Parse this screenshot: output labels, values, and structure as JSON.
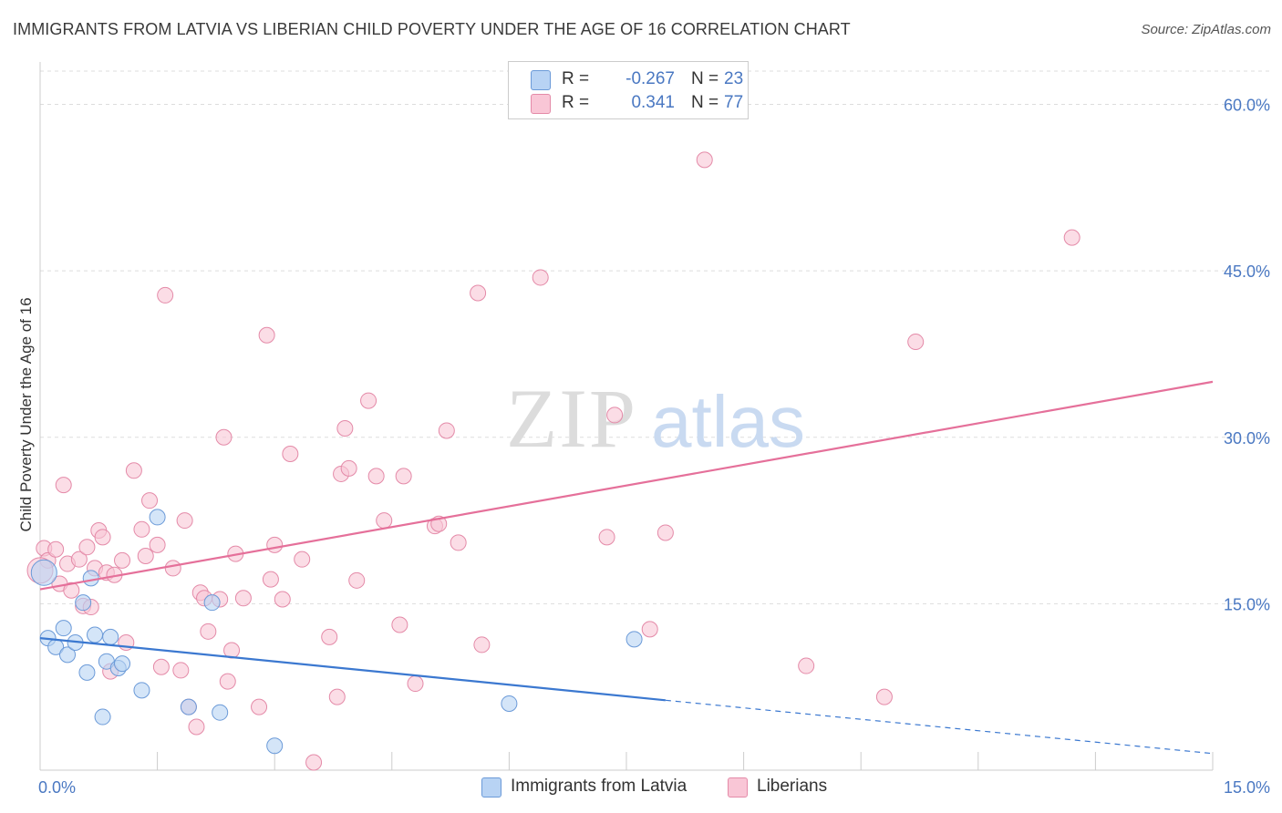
{
  "header": {
    "title": "IMMIGRANTS FROM LATVIA VS LIBERIAN CHILD POVERTY UNDER THE AGE OF 16 CORRELATION CHART",
    "source": "Source: ZipAtlas.com"
  },
  "watermark": {
    "part1": "ZIP",
    "part2": "atlas"
  },
  "legend": {
    "r_label": "R =",
    "n_label": "N =",
    "rows": [
      {
        "r": "-0.267",
        "n": "23",
        "color": "#b8d3f4",
        "border": "#6b9ad8"
      },
      {
        "r": "0.341",
        "n": "77",
        "color": "#f9c6d6",
        "border": "#e48aa8"
      }
    ]
  },
  "chart_data": {
    "type": "scatter",
    "ylabel": "Child Poverty Under the Age of 16",
    "xlim": [
      0,
      15
    ],
    "ylim": [
      0,
      63
    ],
    "x_tick_labels": [
      "0.0%",
      "15.0%"
    ],
    "y_ticks": [
      15,
      30,
      45,
      60
    ],
    "y_tick_labels": [
      "15.0%",
      "30.0%",
      "45.0%",
      "60.0%"
    ],
    "grid": true,
    "series": [
      {
        "name": "Immigrants from Latvia",
        "color": "#b8d3f4",
        "stroke": "#6b9ad8",
        "line_color": "#3b78d0",
        "trend": {
          "x0": 0,
          "y0": 11.9,
          "x1": 8.0,
          "y1": 6.3,
          "dash_to_x": 15,
          "dash_to_y": 1.5
        },
        "points": [
          [
            0.1,
            11.9
          ],
          [
            0.2,
            11.1
          ],
          [
            0.3,
            12.8
          ],
          [
            0.35,
            10.4
          ],
          [
            0.45,
            11.5
          ],
          [
            0.55,
            15.1
          ],
          [
            0.6,
            8.8
          ],
          [
            0.65,
            17.3
          ],
          [
            0.7,
            12.2
          ],
          [
            0.8,
            4.8
          ],
          [
            0.85,
            9.8
          ],
          [
            0.9,
            12.0
          ],
          [
            1.0,
            9.2
          ],
          [
            1.05,
            9.6
          ],
          [
            1.3,
            7.2
          ],
          [
            1.5,
            22.8
          ],
          [
            1.9,
            5.7
          ],
          [
            2.2,
            15.1
          ],
          [
            2.3,
            5.2
          ],
          [
            3.0,
            2.2
          ],
          [
            6.0,
            6.0
          ],
          [
            7.6,
            11.8
          ],
          [
            0.05,
            17.8
          ]
        ]
      },
      {
        "name": "Liberians",
        "color": "#f9c6d6",
        "stroke": "#e48aa8",
        "line_color": "#e5709a",
        "trend": {
          "x0": 0,
          "y0": 16.3,
          "x1": 15,
          "y1": 35.0
        },
        "points": [
          [
            0.05,
            20.0
          ],
          [
            0.1,
            18.9
          ],
          [
            0.2,
            19.9
          ],
          [
            0.25,
            16.8
          ],
          [
            0.3,
            25.7
          ],
          [
            0.35,
            18.6
          ],
          [
            0.4,
            16.2
          ],
          [
            0.5,
            19.0
          ],
          [
            0.55,
            14.8
          ],
          [
            0.6,
            20.1
          ],
          [
            0.65,
            14.7
          ],
          [
            0.7,
            18.2
          ],
          [
            0.75,
            21.6
          ],
          [
            0.8,
            21.0
          ],
          [
            0.85,
            17.8
          ],
          [
            0.9,
            8.9
          ],
          [
            0.95,
            17.6
          ],
          [
            1.05,
            18.9
          ],
          [
            1.1,
            11.5
          ],
          [
            1.2,
            27.0
          ],
          [
            1.3,
            21.7
          ],
          [
            1.35,
            19.3
          ],
          [
            1.4,
            24.3
          ],
          [
            1.5,
            20.3
          ],
          [
            1.55,
            9.3
          ],
          [
            1.6,
            42.8
          ],
          [
            1.7,
            18.2
          ],
          [
            1.8,
            9.0
          ],
          [
            1.85,
            22.5
          ],
          [
            1.9,
            5.7
          ],
          [
            2.0,
            3.9
          ],
          [
            2.05,
            16.0
          ],
          [
            2.1,
            15.5
          ],
          [
            2.15,
            12.5
          ],
          [
            2.3,
            15.4
          ],
          [
            2.35,
            30.0
          ],
          [
            2.4,
            8.0
          ],
          [
            2.45,
            10.8
          ],
          [
            2.5,
            19.5
          ],
          [
            2.6,
            15.5
          ],
          [
            2.8,
            5.7
          ],
          [
            2.9,
            39.2
          ],
          [
            2.95,
            17.2
          ],
          [
            3.0,
            20.3
          ],
          [
            3.1,
            15.4
          ],
          [
            3.2,
            28.5
          ],
          [
            3.35,
            19.0
          ],
          [
            3.5,
            0.7
          ],
          [
            3.7,
            12.0
          ],
          [
            3.8,
            6.6
          ],
          [
            3.85,
            26.7
          ],
          [
            3.9,
            30.8
          ],
          [
            3.95,
            27.2
          ],
          [
            4.05,
            17.1
          ],
          [
            4.2,
            33.3
          ],
          [
            4.3,
            26.5
          ],
          [
            4.4,
            22.5
          ],
          [
            4.6,
            13.1
          ],
          [
            4.65,
            26.5
          ],
          [
            4.8,
            7.8
          ],
          [
            5.05,
            22.0
          ],
          [
            5.1,
            22.2
          ],
          [
            5.2,
            30.6
          ],
          [
            5.35,
            20.5
          ],
          [
            5.6,
            43.0
          ],
          [
            5.65,
            11.3
          ],
          [
            6.4,
            44.4
          ],
          [
            7.25,
            21.0
          ],
          [
            7.35,
            32.0
          ],
          [
            7.8,
            12.7
          ],
          [
            8.0,
            21.4
          ],
          [
            8.5,
            55.0
          ],
          [
            9.8,
            9.4
          ],
          [
            10.8,
            6.6
          ],
          [
            11.2,
            38.6
          ],
          [
            13.2,
            48.0
          ],
          [
            0.0,
            18.0
          ]
        ]
      }
    ]
  }
}
